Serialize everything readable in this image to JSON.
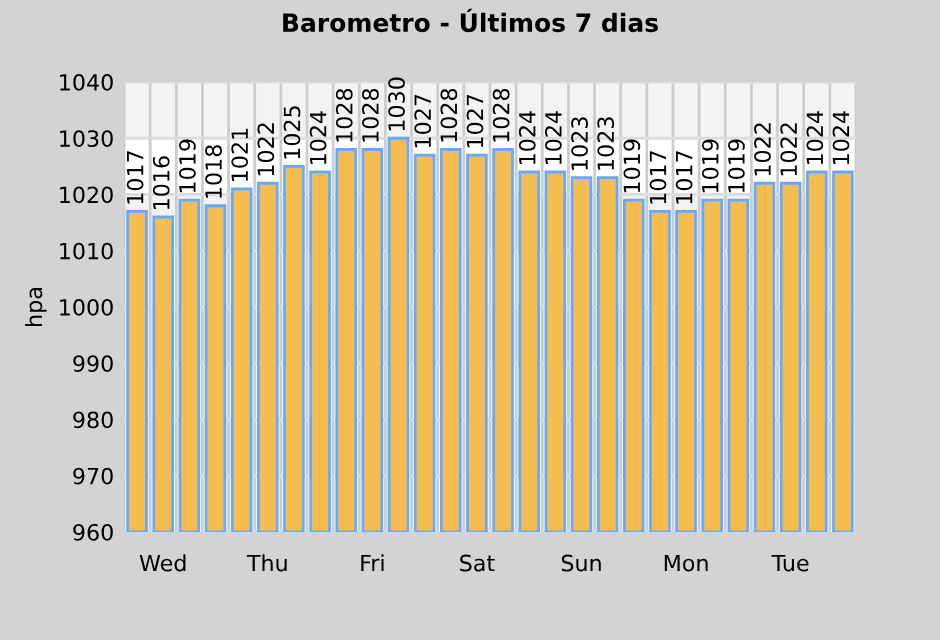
{
  "chart_data": {
    "type": "bar",
    "title": "Barometro - Últimos 7 dias",
    "ylabel": "hpa",
    "categories": [
      null,
      "Wed",
      null,
      null,
      null,
      "Thu",
      null,
      null,
      null,
      "Fri",
      null,
      null,
      null,
      "Sat",
      null,
      null,
      null,
      "Sun",
      null,
      null,
      null,
      "Mon",
      null,
      null,
      null,
      "Tue",
      null,
      null
    ],
    "values": [
      1017,
      1016,
      1019,
      1018,
      1021,
      1022,
      1025,
      1024,
      1028,
      1028,
      1030,
      1027,
      1028,
      1027,
      1028,
      1024,
      1024,
      1023,
      1023,
      1019,
      1017,
      1017,
      1019,
      1019,
      1022,
      1022,
      1024,
      1024
    ],
    "color": "#f5bd4f",
    "ylim": [
      960,
      1040
    ],
    "yticks": [
      960,
      970,
      980,
      990,
      1000,
      1010,
      1020,
      1030,
      1040
    ],
    "grid": true,
    "data_labels": true
  }
}
